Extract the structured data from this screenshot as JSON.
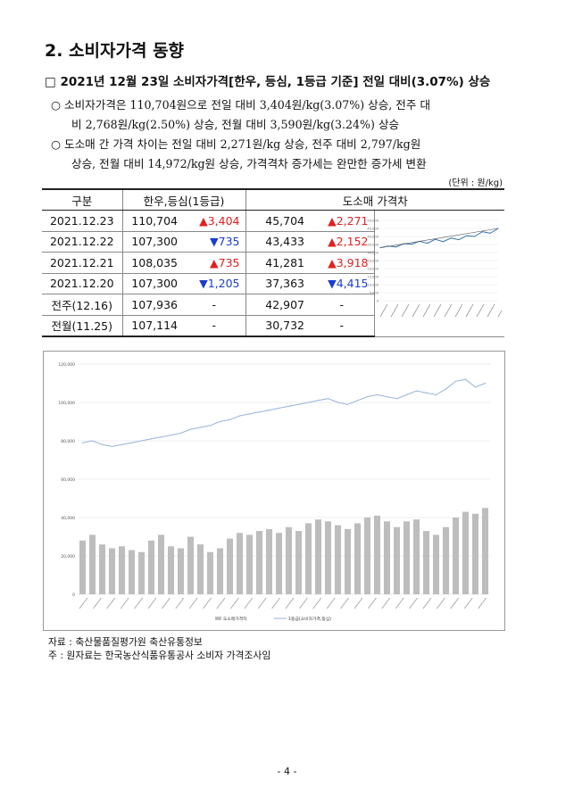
{
  "section_title": "2. 소비자가격 동향",
  "headline": "□ 2021년 12월 23일 소비자가격[한우, 등심, 1등급 기준] 전일 대비(3.07%) 상승",
  "bullets": [
    {
      "line1": "○  소비자가격은 110,704원으로 전일 대비 3,404원/kg(3.07%) 상승, 전주 대",
      "line2": "비 2,768원/kg(2.50%) 상승, 전월 대비 3,590원/kg(3.24%) 상승"
    },
    {
      "line1": "○  도소매 간 가격 차이는 전일 대비 2,271원/kg 상승, 전주 대비 2,797/kg원",
      "line2": "상승, 전월 대비 14,972/kg원 상승, 가격격차 증가세는 완만한 증가세 변환"
    }
  ],
  "unit": "(단위 : 원/kg)",
  "table": {
    "headers": [
      "구분",
      "한우,등심(1등급)",
      "도소매 가격차"
    ],
    "rows": [
      {
        "label": "2021.12.23",
        "price": "110,704",
        "price_change": "▲3,404",
        "price_dir": "up",
        "gap": "45,704",
        "gap_change": "▲2,271",
        "gap_dir": "up"
      },
      {
        "label": "2021.12.22",
        "price": "107,300",
        "price_change": "▼735",
        "price_dir": "down",
        "gap": "43,433",
        "gap_change": "▲2,152",
        "gap_dir": "up"
      },
      {
        "label": "2021.12.21",
        "price": "108,035",
        "price_change": "▲735",
        "price_dir": "up",
        "gap": "41,281",
        "gap_change": "▲3,918",
        "gap_dir": "up"
      },
      {
        "label": "2021.12.20",
        "price": "107,300",
        "price_change": "▼1,205",
        "price_dir": "down",
        "gap": "37,363",
        "gap_change": "▼4,415",
        "gap_dir": "down"
      },
      {
        "label": "전주(12.16)",
        "price": "107,936",
        "price_change": "-",
        "price_dir": "none",
        "gap": "42,907",
        "gap_change": "-",
        "gap_dir": "none"
      },
      {
        "label": "전월(11.25)",
        "price": "107,114",
        "price_change": "-",
        "price_dir": "none",
        "gap": "30,732",
        "gap_change": "-",
        "gap_dir": "none"
      }
    ]
  },
  "chart_data": [
    {
      "type": "line",
      "series": [
        {
          "values": [
            33000,
            34000,
            33500,
            35500,
            35200,
            37000,
            35800,
            38200,
            36800,
            39000,
            38000,
            40500,
            40000,
            43000,
            42000,
            45000
          ]
        }
      ],
      "ylim": [
        0,
        50000
      ],
      "yticks": [
        "50,000",
        "45,000",
        "40,000",
        "35,000",
        "30,000",
        "25,000",
        "20,000",
        "15,000",
        "10,000",
        "5,000",
        "0"
      ],
      "colors": {
        "line": "#2f6fb0",
        "trend": "#555555"
      }
    },
    {
      "type": "bar",
      "ylim": [
        0,
        120000
      ],
      "yticks": [
        "0",
        "20,000",
        "40,000",
        "60,000",
        "80,000",
        "100,000",
        "120,000"
      ],
      "series": [
        {
          "name": "도소매가격차",
          "type": "bar",
          "values": [
            28000,
            31000,
            26000,
            24000,
            25000,
            23000,
            22000,
            28000,
            31000,
            25000,
            24000,
            30000,
            26000,
            22000,
            24000,
            29000,
            32000,
            31000,
            33000,
            34000,
            32000,
            35000,
            33000,
            37000,
            39000,
            38000,
            36000,
            34000,
            37000,
            40000,
            41000,
            38000,
            35000,
            38000,
            39000,
            33000,
            31000,
            35000,
            40000,
            43000,
            42000,
            45000
          ]
        },
        {
          "name": "1등급(소비자가격,등심)",
          "type": "line",
          "values": [
            79000,
            80000,
            78000,
            77000,
            78000,
            79000,
            80000,
            81000,
            82000,
            83000,
            84000,
            86000,
            87000,
            88000,
            90000,
            91000,
            93000,
            94000,
            95000,
            96000,
            97000,
            98000,
            99000,
            100000,
            101000,
            102000,
            100000,
            99000,
            101000,
            103000,
            104000,
            103000,
            102000,
            104000,
            106000,
            105000,
            104000,
            107000,
            111000,
            112000,
            108000,
            110000
          ]
        }
      ],
      "colors": {
        "bar": "#bdbdbd",
        "line": "#9ab3d9"
      }
    }
  ],
  "notes": [
    "자료 : 축산물품질평가원 축산유통정보",
    "  주 : 원자료는 한국농산식품유통공사 소비자 가격조사임"
  ],
  "page_number": "- 4 -"
}
